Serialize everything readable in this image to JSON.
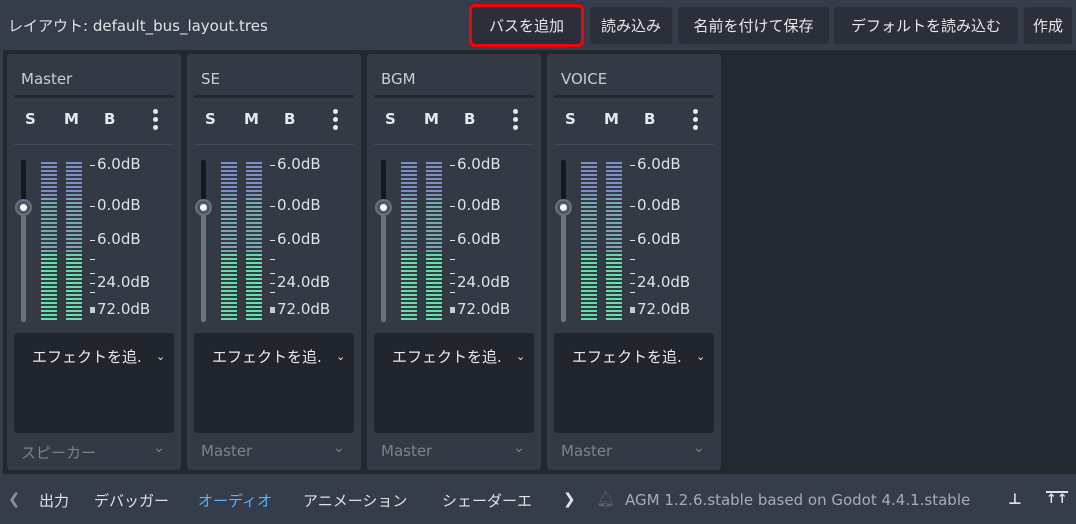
{
  "header": {
    "layout_title": "レイアウト: default_bus_layout.tres",
    "buttons": [
      {
        "label": "バスを追加",
        "highlighted": true
      },
      {
        "label": "読み込み"
      },
      {
        "label": "名前を付けて保存"
      },
      {
        "label": "デフォルトを読み込む"
      },
      {
        "label": "作成"
      }
    ]
  },
  "buses": [
    {
      "name": "Master",
      "output": "スピーカー",
      "volume_db": 0.0
    },
    {
      "name": "SE",
      "output": "Master",
      "volume_db": 0.0
    },
    {
      "name": "BGM",
      "output": "Master",
      "volume_db": 0.0
    },
    {
      "name": "VOICE",
      "output": "Master",
      "volume_db": 0.0
    }
  ],
  "bus_controls": {
    "solo": "S",
    "mute": "M",
    "bypass": "B",
    "add_effect": "エフェクトを追.",
    "options_icon": "kebab-icon"
  },
  "db_scale": [
    "6.0dB",
    "0.0dB",
    "6.0dB",
    "24.0dB",
    "72.0dB"
  ],
  "meter_colors": {
    "top": "#7f8fc6",
    "mid": "#79a8b0",
    "bottom": "#5fe0a8"
  },
  "bottom": {
    "tabs": [
      {
        "label": "出力"
      },
      {
        "label": "デバッガー"
      },
      {
        "label": "オーディオ",
        "active": true
      },
      {
        "label": "アニメーション"
      },
      {
        "label": "シェーダーエ"
      }
    ],
    "version": "AGM 1.2.6.stable based on Godot 4.4.1.stable",
    "active_color": "#57b3ff"
  }
}
